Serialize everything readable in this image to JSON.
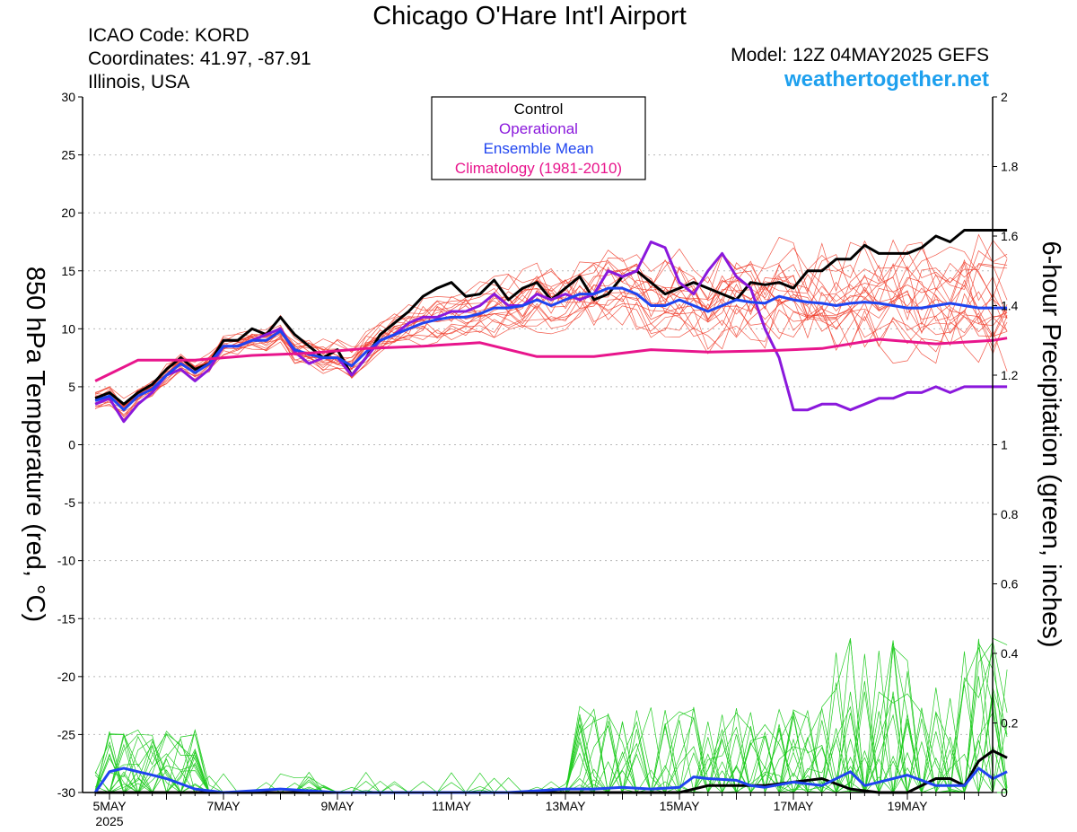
{
  "header": {
    "title": "Chicago O'Hare Int'l Airport",
    "icao": "ICAO Code: KORD",
    "coordinates": "Coordinates: 41.97, -87.91",
    "location": "Illinois, USA",
    "model": "Model: 12Z 04MAY2025 GEFS",
    "site": "weathertogether.net"
  },
  "colors": {
    "control": "#000000",
    "operational": "#8a18dc",
    "ensemble_mean": "#1f44f0",
    "climatology": "#e8158c",
    "members_temp": "#f03c2a",
    "members_precip": "#22cc22",
    "site": "#1ea0ee"
  },
  "chart_data": {
    "type": "line",
    "ylabel": "850 hPa Temperature (red, °C)",
    "y2label": "6-hour Precipitation (green, inches)",
    "ylim": [
      -30,
      30
    ],
    "y2lim": [
      0,
      2
    ],
    "yticks": [
      "30",
      "25",
      "20",
      "15",
      "10",
      "5",
      "0",
      "-5",
      "-10",
      "-15",
      "-20",
      "-25",
      "-30"
    ],
    "y2ticks": [
      "2",
      "1.8",
      "1.6",
      "1.4",
      "1.2",
      "1",
      "0.8",
      "0.6",
      "0.4",
      "0.2",
      "0"
    ],
    "xticks": [
      "5MAY",
      "7MAY",
      "9MAY",
      "11MAY",
      "13MAY",
      "15MAY",
      "17MAY",
      "19MAY"
    ],
    "xtick_year": "2025",
    "x_unit": "days since 5MAY 00Z",
    "grid": true,
    "legend": {
      "position": "top-center",
      "entries": [
        {
          "label": "Control",
          "color": "#000000"
        },
        {
          "label": "Operational",
          "color": "#8a18dc"
        },
        {
          "label": "Ensemble Mean",
          "color": "#1f44f0"
        },
        {
          "label": "Climatology (1981-2010)",
          "color": "#e8158c"
        }
      ]
    },
    "series": [
      {
        "name": "Control",
        "axis": "temp",
        "x": [
          -0.25,
          0,
          0.25,
          0.5,
          0.75,
          1,
          1.25,
          1.5,
          1.75,
          2,
          2.25,
          2.5,
          2.75,
          3,
          3.25,
          3.5,
          3.75,
          4,
          4.25,
          4.5,
          4.75,
          5,
          5.25,
          5.5,
          5.75,
          6,
          6.25,
          6.5,
          6.75,
          7,
          7.25,
          7.5,
          7.75,
          8,
          8.25,
          8.5,
          8.75,
          9,
          9.25,
          9.5,
          9.75,
          10,
          10.25,
          10.5,
          10.75,
          11,
          11.25,
          11.5,
          11.75,
          12,
          12.25,
          12.5,
          12.75,
          13,
          13.25,
          13.5,
          13.75,
          14,
          14.25,
          14.5,
          14.75,
          15,
          15.25,
          15.5,
          15.75
        ],
        "values": [
          4,
          4.5,
          3.5,
          4.5,
          5.2,
          6.5,
          7.5,
          6.5,
          7,
          9,
          9,
          10,
          9.5,
          11,
          9.5,
          8.5,
          7.5,
          8.2,
          6,
          7.5,
          9.5,
          10.5,
          11.5,
          12.8,
          13.5,
          14,
          12.8,
          13,
          14.2,
          12.5,
          13.5,
          14,
          12.5,
          13.5,
          14.5,
          12.5,
          13,
          14.5,
          15,
          14,
          13,
          13.5,
          14,
          13.5,
          13,
          12.5,
          14,
          13.8,
          14,
          13.5,
          15,
          15,
          16,
          16,
          17.2,
          16.5,
          16.5,
          16.5,
          17,
          18,
          17.5,
          18.5,
          18.5,
          18.5,
          18.5
        ]
      },
      {
        "name": "Operational",
        "axis": "temp",
        "x": [
          -0.25,
          0,
          0.25,
          0.5,
          0.75,
          1,
          1.25,
          1.5,
          1.75,
          2,
          2.25,
          2.5,
          2.75,
          3,
          3.25,
          3.5,
          3.75,
          4,
          4.25,
          4.5,
          4.75,
          5,
          5.25,
          5.5,
          5.75,
          6,
          6.25,
          6.5,
          6.75,
          7,
          7.25,
          7.5,
          7.75,
          8,
          8.25,
          8.5,
          8.75,
          9,
          9.25,
          9.5,
          9.75,
          10,
          10.25,
          10.5,
          10.75,
          11,
          11.25,
          11.5,
          11.75,
          12,
          12.25,
          12.5,
          12.75,
          13,
          13.25,
          13.5,
          13.75,
          14,
          14.25,
          14.5,
          14.75,
          15,
          15.25,
          15.5,
          15.75
        ],
        "values": [
          3.5,
          4,
          2,
          3.5,
          4.5,
          6,
          6.5,
          5.5,
          6.5,
          8.5,
          8.5,
          9,
          9.5,
          10,
          8,
          7,
          7.5,
          7.5,
          6,
          7.5,
          9,
          9.5,
          10.5,
          11,
          11,
          11.5,
          11.5,
          12,
          13,
          12,
          12,
          13,
          12.5,
          13,
          12.5,
          13,
          15,
          14.5,
          15,
          17.5,
          17,
          14,
          13,
          15,
          16.5,
          14.5,
          13.5,
          10,
          7.5,
          3,
          3,
          3.5,
          3.5,
          3,
          3.5,
          4,
          4,
          4.5,
          4.5,
          5,
          4.5,
          5,
          5,
          5,
          5
        ]
      },
      {
        "name": "Ensemble Mean",
        "axis": "temp",
        "x": [
          -0.25,
          0,
          0.25,
          0.5,
          0.75,
          1,
          1.25,
          1.5,
          1.75,
          2,
          2.25,
          2.5,
          2.75,
          3,
          3.25,
          3.5,
          3.75,
          4,
          4.25,
          4.5,
          4.75,
          5,
          5.25,
          5.5,
          5.75,
          6,
          6.25,
          6.5,
          6.75,
          7,
          7.25,
          7.5,
          7.75,
          8,
          8.25,
          8.5,
          8.75,
          9,
          9.25,
          9.5,
          9.75,
          10,
          10.25,
          10.5,
          10.75,
          11,
          11.25,
          11.5,
          11.75,
          12,
          12.25,
          12.5,
          12.75,
          13,
          13.25,
          13.5,
          13.75,
          14,
          14.25,
          14.5,
          14.75,
          15,
          15.25,
          15.5,
          15.75
        ],
        "values": [
          3.8,
          4.2,
          3,
          4.2,
          4.8,
          6,
          7,
          6.2,
          7,
          8.5,
          8.5,
          9,
          9,
          9.8,
          8.2,
          7.8,
          7.5,
          7.5,
          6.8,
          8,
          9,
          9.5,
          10,
          10.5,
          10.8,
          11,
          11,
          11.3,
          11.8,
          11.8,
          12,
          12.5,
          12,
          12.5,
          13,
          13,
          13.5,
          13.5,
          13,
          12,
          12,
          12.5,
          12,
          11.5,
          12,
          12.5,
          12.3,
          12.2,
          12.8,
          12.5,
          12.3,
          12.2,
          12,
          12.2,
          12.3,
          12.2,
          12,
          11.8,
          11.8,
          12,
          12.2,
          12,
          11.8,
          11.8,
          11.8
        ]
      },
      {
        "name": "Climatology (1981-2010)",
        "axis": "temp",
        "x": [
          -0.25,
          0.5,
          1.5,
          2.5,
          3.5,
          4.5,
          5.5,
          6.5,
          7.5,
          8.5,
          9.5,
          10.5,
          11.5,
          12.5,
          13.5,
          14.5,
          15.5,
          15.75
        ],
        "values": [
          5.5,
          7.3,
          7.3,
          7.7,
          7.9,
          8.3,
          8.5,
          8.8,
          7.6,
          7.6,
          8.2,
          8,
          8.1,
          8.3,
          9.1,
          8.7,
          9,
          9.2
        ]
      },
      {
        "name": "Control",
        "axis": "precip",
        "x": [
          -0.25,
          2,
          4,
          6,
          8,
          10,
          10.5,
          11,
          11.5,
          12,
          12.5,
          13,
          13.5,
          14,
          14.5,
          14.75,
          15,
          15.25,
          15.5,
          15.75
        ],
        "values": [
          0,
          0,
          0,
          0,
          0,
          0,
          0.02,
          0.02,
          0.02,
          0.03,
          0.04,
          0.01,
          0,
          0,
          0.04,
          0.04,
          0.02,
          0.09,
          0.12,
          0.1
        ]
      },
      {
        "name": "Ensemble Mean",
        "axis": "precip",
        "x": [
          -0.25,
          0,
          0.25,
          0.5,
          0.75,
          1,
          1.5,
          2,
          3,
          4,
          5,
          6,
          7,
          8,
          8.5,
          9,
          9.5,
          10,
          10.25,
          10.5,
          11,
          11.25,
          11.5,
          12,
          12.5,
          13,
          13.25,
          13.5,
          14,
          14.5,
          15,
          15.25,
          15.5,
          15.75
        ],
        "values": [
          0,
          0.06,
          0.07,
          0.06,
          0.05,
          0.04,
          0.01,
          0,
          0.01,
          0,
          0,
          0,
          0,
          0.01,
          0.01,
          0.015,
          0.01,
          0.015,
          0.045,
          0.04,
          0.035,
          0.02,
          0.015,
          0.03,
          0.02,
          0.06,
          0.02,
          0.03,
          0.05,
          0.02,
          0.02,
          0.07,
          0.04,
          0.06
        ]
      }
    ]
  }
}
